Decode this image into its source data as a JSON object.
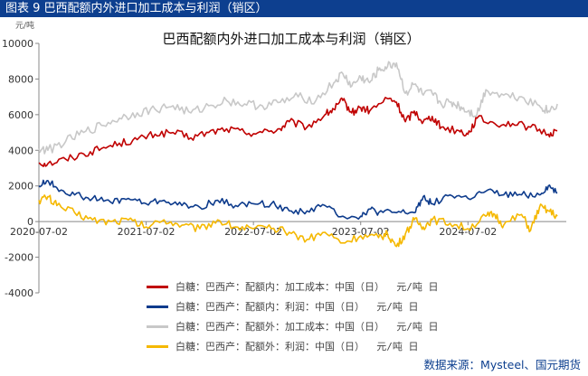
{
  "figure_label": "图表 9  巴西配额内外进口加工成本与利润（销区）",
  "source": "数据来源：Mysteel、国元期货",
  "chart_data": {
    "type": "line",
    "title": "巴西配额内外进口加工成本与利润（销区）",
    "ylabel": "元/吨",
    "xlabel": "",
    "ylim": [
      -4000,
      10000
    ],
    "yticks": [
      -4000,
      -2000,
      0,
      2000,
      4000,
      6000,
      8000,
      10000
    ],
    "xticklabels": [
      "2020-07-02",
      "2021-07-02",
      "2022-07-02",
      "2023-07-02",
      "2024-07-02"
    ],
    "xtick_positions": [
      0,
      12,
      24,
      36,
      48
    ],
    "x_unit": "months since 2020-07",
    "grid": false,
    "legend_position": "bottom",
    "series": [
      {
        "name": "白糖：巴西产：配额内：加工成本：中国（日）  元/吨 日",
        "color": "#c00000",
        "x": [
          0,
          1,
          3,
          5,
          7,
          9,
          11,
          13,
          15,
          17,
          19,
          21,
          23,
          25,
          27,
          28,
          30,
          32,
          33,
          34,
          35,
          36,
          37,
          39,
          40,
          41,
          42,
          43,
          44,
          45,
          47,
          48,
          49,
          51,
          53,
          55,
          57,
          58
        ],
        "values": [
          3300,
          3250,
          3500,
          3800,
          4100,
          4400,
          4600,
          4900,
          5000,
          4700,
          5000,
          5200,
          5000,
          5000,
          5200,
          5600,
          5300,
          6000,
          6300,
          6800,
          6100,
          6400,
          6200,
          6900,
          6700,
          5600,
          6200,
          5600,
          5900,
          5300,
          5100,
          4900,
          5800,
          5500,
          5500,
          5300,
          4900,
          5100
        ]
      },
      {
        "name": "白糖：巴西产：配额内：利润：中国（日）  元/吨 日",
        "color": "#0d3b8c",
        "x": [
          0,
          1,
          2,
          4,
          6,
          8,
          10,
          12,
          14,
          16,
          18,
          20,
          22,
          24,
          26,
          28,
          30,
          32,
          34,
          36,
          37,
          38,
          40,
          42,
          43,
          44,
          46,
          48,
          50,
          52,
          54,
          56,
          57,
          58
        ],
        "values": [
          2000,
          2300,
          1900,
          1500,
          1300,
          1100,
          1300,
          1000,
          1200,
          900,
          800,
          1200,
          900,
          1000,
          1000,
          600,
          600,
          900,
          300,
          300,
          700,
          500,
          500,
          500,
          1400,
          1000,
          1500,
          1300,
          1700,
          1500,
          1500,
          1500,
          2000,
          1600
        ]
      },
      {
        "name": "白糖：巴西产：配额外：加工成本：中国（日）  元/吨 日",
        "color": "#c8c8c8",
        "x": [
          0,
          1,
          3,
          5,
          7,
          9,
          11,
          13,
          15,
          17,
          19,
          21,
          23,
          25,
          27,
          29,
          31,
          33,
          34,
          35,
          36,
          37,
          38,
          39,
          40,
          41,
          42,
          43,
          44,
          45,
          46,
          47,
          48,
          49,
          50,
          52,
          54,
          56,
          57,
          58
        ],
        "values": [
          4100,
          4000,
          4500,
          5000,
          5400,
          5800,
          6100,
          6300,
          6500,
          6100,
          6500,
          6800,
          6600,
          6500,
          6700,
          7000,
          6800,
          7800,
          8300,
          7600,
          8100,
          7800,
          8500,
          8700,
          8900,
          7200,
          7700,
          7100,
          7200,
          6600,
          6700,
          6500,
          6200,
          6000,
          7400,
          7100,
          7000,
          6500,
          6200,
          6600
        ]
      },
      {
        "name": "白糖：巴西产：配额外：利润：中国（日）  元/吨 日",
        "color": "#f5b800",
        "x": [
          0,
          1,
          2,
          4,
          6,
          8,
          10,
          12,
          14,
          16,
          18,
          20,
          22,
          24,
          26,
          28,
          30,
          32,
          34,
          36,
          38,
          39,
          40,
          41,
          42,
          43,
          44,
          46,
          48,
          50,
          51,
          52,
          54,
          55,
          56,
          57,
          58
        ],
        "values": [
          1200,
          1400,
          900,
          500,
          100,
          0,
          100,
          -300,
          100,
          -200,
          -400,
          100,
          -300,
          -400,
          -400,
          -600,
          -1000,
          -600,
          -1200,
          -800,
          -900,
          -700,
          -1400,
          -700,
          100,
          -300,
          100,
          -100,
          -400,
          300,
          400,
          -200,
          400,
          -500,
          800,
          600,
          300
        ]
      }
    ]
  }
}
